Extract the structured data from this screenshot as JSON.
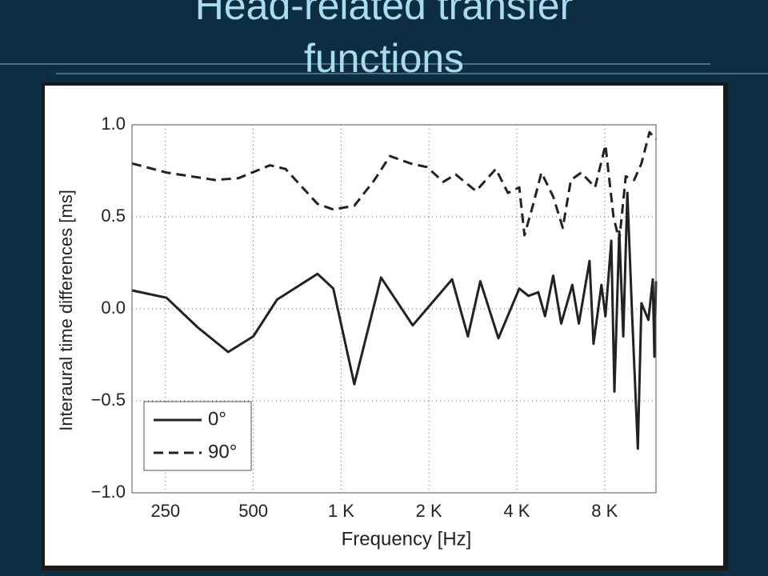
{
  "title": "Head-related transfer functions",
  "chart_data": {
    "type": "line",
    "xlabel": "Frequency [Hz]",
    "ylabel": "Interaural time differences [ms]",
    "xscale": "log",
    "xlim": [
      192,
      12000
    ],
    "ylim": [
      -1,
      1
    ],
    "xticks": [
      250,
      500,
      {
        "value": 1000,
        "label": "1 K"
      },
      {
        "value": 2000,
        "label": "2 K"
      },
      {
        "value": 4000,
        "label": "4 K"
      },
      {
        "value": 8000,
        "label": "8 K"
      }
    ],
    "yticks": [
      {
        "value": 1,
        "label": "1.0"
      },
      {
        "value": 0.5,
        "label": "0.5"
      },
      {
        "value": 0,
        "label": "0.0"
      },
      {
        "value": -0.5,
        "label": "−0.5"
      },
      {
        "value": -1,
        "label": "−1.0"
      }
    ],
    "grid": true,
    "legend": "lower left",
    "series": [
      {
        "name": "0°",
        "color": "#222222",
        "dash": "solid",
        "x": [
          192,
          252,
          322,
          410,
          500,
          603,
          830,
          940,
          1110,
          1370,
          1760,
          2400,
          2720,
          3000,
          3460,
          4080,
          4390,
          4740,
          5000,
          5330,
          5680,
          6200,
          6530,
          7100,
          7330,
          7800,
          8050,
          8430,
          8640,
          8980,
          9270,
          9570,
          9940,
          10400,
          10700,
          11300,
          11700,
          11850,
          12000
        ],
        "values": [
          0.1,
          0.06,
          -0.1,
          -0.235,
          -0.15,
          0.05,
          0.19,
          0.11,
          -0.41,
          0.17,
          -0.09,
          0.16,
          -0.15,
          0.15,
          -0.16,
          0.11,
          0.07,
          0.09,
          -0.04,
          0.18,
          -0.08,
          0.13,
          -0.08,
          0.26,
          -0.19,
          0.13,
          -0.04,
          0.37,
          -0.45,
          0.42,
          -0.15,
          0.63,
          -0.04,
          -0.76,
          0.03,
          -0.06,
          0.16,
          -0.26,
          0.15
        ]
      },
      {
        "name": "90°",
        "color": "#222222",
        "dash": "dashed",
        "x": [
          192,
          253,
          370,
          445,
          570,
          645,
          830,
          940,
          1110,
          1300,
          1470,
          1730,
          1970,
          2240,
          2470,
          2900,
          3390,
          3730,
          4080,
          4250,
          4540,
          4860,
          5330,
          5750,
          6130,
          6650,
          7420,
          8050,
          8580,
          8980,
          9450,
          10100,
          10700,
          11400,
          12000
        ],
        "values": [
          0.79,
          0.74,
          0.7,
          0.71,
          0.78,
          0.76,
          0.57,
          0.54,
          0.56,
          0.7,
          0.83,
          0.79,
          0.77,
          0.69,
          0.73,
          0.64,
          0.76,
          0.63,
          0.66,
          0.4,
          0.56,
          0.74,
          0.61,
          0.44,
          0.7,
          0.74,
          0.66,
          0.89,
          0.5,
          0.37,
          0.72,
          0.7,
          0.79,
          0.96,
          0.92
        ]
      }
    ]
  }
}
